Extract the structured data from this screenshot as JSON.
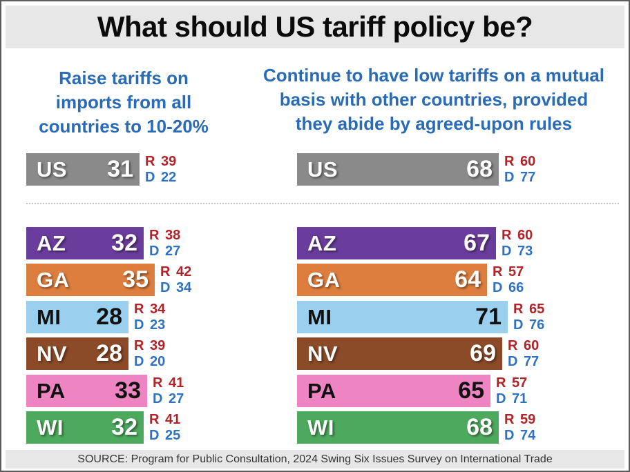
{
  "title": "What should US tariff policy be?",
  "source_note": "SOURCE: Program for Public Consultation, 2024 Swing Six Issues Survey on International Trade",
  "colors": {
    "header_blue": "#2a6bb6",
    "republican_red": "#b22328",
    "democrat_blue": "#2e72c1",
    "band_gray": "#e7e7e7"
  },
  "chart_data": {
    "type": "bar",
    "orientation": "horizontal",
    "value_unit": "percent",
    "party_prefixes": {
      "rep": "R",
      "dem": "D"
    },
    "columns": [
      {
        "id": "raise-tariffs",
        "question": "Raise tariffs on\nimports from all\ncountries to 10-20%",
        "rows": [
          {
            "label": "US",
            "value": 31,
            "R": 39,
            "D": 22,
            "bar_color": "#8a8a8a",
            "label_color": "#ffffff",
            "group": "national"
          },
          {
            "label": "AZ",
            "value": 32,
            "R": 38,
            "D": 27,
            "bar_color": "#6a3c9c",
            "label_color": "#ffffff",
            "group": "state"
          },
          {
            "label": "GA",
            "value": 35,
            "R": 42,
            "D": 34,
            "bar_color": "#dd7e3e",
            "label_color": "#ffffff",
            "group": "state"
          },
          {
            "label": "MI",
            "value": 28,
            "R": 34,
            "D": 23,
            "bar_color": "#9bcfee",
            "label_color": "#111111",
            "group": "state"
          },
          {
            "label": "NV",
            "value": 28,
            "R": 39,
            "D": 20,
            "bar_color": "#8b4a28",
            "label_color": "#ffffff",
            "group": "state"
          },
          {
            "label": "PA",
            "value": 33,
            "R": 41,
            "D": 27,
            "bar_color": "#ee85c2",
            "label_color": "#111111",
            "group": "state"
          },
          {
            "label": "WI",
            "value": 32,
            "R": 41,
            "D": 25,
            "bar_color": "#4da95e",
            "label_color": "#ffffff",
            "group": "state"
          }
        ]
      },
      {
        "id": "low-tariffs",
        "question": "Continue to have low tariffs on a mutual\nbasis with other countries, provided\nthey abide by agreed-upon rules",
        "rows": [
          {
            "label": "US",
            "value": 68,
            "R": 60,
            "D": 77,
            "bar_color": "#8a8a8a",
            "label_color": "#ffffff",
            "group": "national"
          },
          {
            "label": "AZ",
            "value": 67,
            "R": 60,
            "D": 73,
            "bar_color": "#6a3c9c",
            "label_color": "#ffffff",
            "group": "state"
          },
          {
            "label": "GA",
            "value": 64,
            "R": 57,
            "D": 66,
            "bar_color": "#dd7e3e",
            "label_color": "#ffffff",
            "group": "state"
          },
          {
            "label": "MI",
            "value": 71,
            "R": 65,
            "D": 76,
            "bar_color": "#9bcfee",
            "label_color": "#111111",
            "group": "state"
          },
          {
            "label": "NV",
            "value": 69,
            "R": 60,
            "D": 77,
            "bar_color": "#8b4a28",
            "label_color": "#ffffff",
            "group": "state"
          },
          {
            "label": "PA",
            "value": 65,
            "R": 57,
            "D": 71,
            "bar_color": "#ee85c2",
            "label_color": "#111111",
            "group": "state"
          },
          {
            "label": "WI",
            "value": 68,
            "R": 59,
            "D": 74,
            "bar_color": "#4da95e",
            "label_color": "#ffffff",
            "group": "state"
          }
        ]
      }
    ]
  }
}
